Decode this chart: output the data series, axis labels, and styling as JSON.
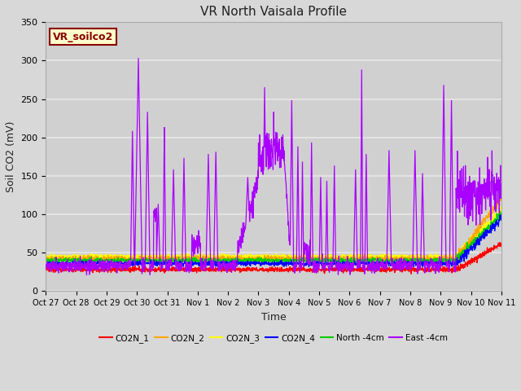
{
  "title": "VR North Vaisala Profile",
  "ylabel": "Soil CO2 (mV)",
  "xlabel": "Time",
  "ylim": [
    0,
    350
  ],
  "yticks": [
    0,
    50,
    100,
    150,
    200,
    250,
    300,
    350
  ],
  "x_tick_labels": [
    "Oct 27",
    "Oct 28",
    "Oct 29",
    "Oct 30",
    "Oct 31",
    "Nov 1",
    "Nov 2",
    "Nov 3",
    "Nov 4",
    "Nov 5",
    "Nov 6",
    "Nov 7",
    "Nov 8",
    "Nov 9",
    "Nov 10",
    "Nov 11"
  ],
  "fig_bg_color": "#d8d8d8",
  "plot_bg_color": "#d0d0d0",
  "grid_color": "#e8e8e8",
  "annotation_text": "VR_soilco2",
  "annotation_color": "#8b0000",
  "annotation_bg": "#ffffcc",
  "series_colors": {
    "CO2N_1": "#ff0000",
    "CO2N_2": "#ffa500",
    "CO2N_3": "#ffff00",
    "CO2N_4": "#0000ff",
    "North_4cm": "#00cc00",
    "East_4cm": "#aa00ff"
  },
  "legend_labels": [
    "CO2N_1",
    "CO2N_2",
    "CO2N_3",
    "CO2N_4",
    "North -4cm",
    "East -4cm"
  ]
}
